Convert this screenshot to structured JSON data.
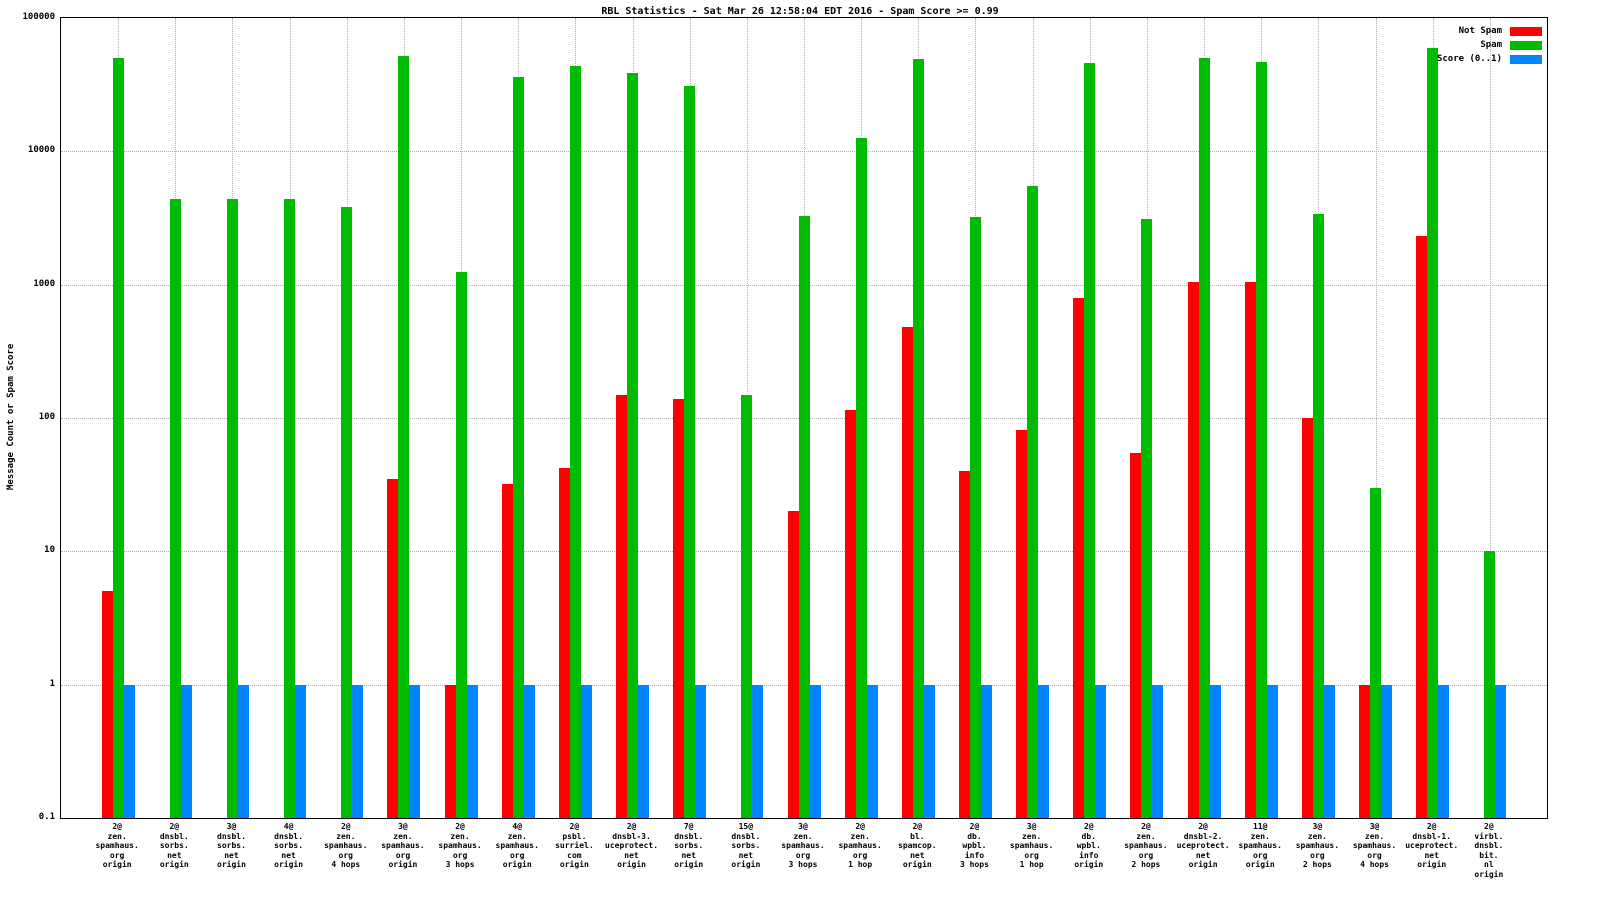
{
  "chart_data": {
    "type": "bar",
    "title": "RBL Statistics - Sat Mar 26 12:58:04 EDT 2016 - Spam Score >= 0.99",
    "ylabel": "Message Count or Spam Score",
    "y_scale": "log",
    "ylim": [
      0.1,
      100000
    ],
    "y_ticks": [
      "100000",
      "10000",
      "1000",
      "100",
      "10",
      "1",
      "0.1"
    ],
    "grid": true,
    "legend_position": "top-right",
    "legend": [
      {
        "label": "Not Spam",
        "color": "#ff0000"
      },
      {
        "label": "Spam",
        "color": "#00bb00"
      },
      {
        "label": "Score (0..1)",
        "color": "#0084ff"
      }
    ],
    "categories": [
      [
        "2@",
        "zen.",
        "spamhaus.",
        "org",
        "origin"
      ],
      [
        "2@",
        "dnsbl.",
        "sorbs.",
        "net",
        "origin"
      ],
      [
        "3@",
        "dnsbl.",
        "sorbs.",
        "net",
        "origin"
      ],
      [
        "4@",
        "dnsbl.",
        "sorbs.",
        "net",
        "origin"
      ],
      [
        "2@",
        "zen.",
        "spamhaus.",
        "org",
        "4 hops"
      ],
      [
        "3@",
        "zen.",
        "spamhaus.",
        "org",
        "origin"
      ],
      [
        "2@",
        "zen.",
        "spamhaus.",
        "org",
        "3 hops"
      ],
      [
        "4@",
        "zen.",
        "spamhaus.",
        "org",
        "origin"
      ],
      [
        "2@",
        "psbl.",
        "surriel.",
        "com",
        "origin"
      ],
      [
        "2@",
        "dnsbl-3.",
        "uceprotect.",
        "net",
        "origin"
      ],
      [
        "7@",
        "dnsbl.",
        "sorbs.",
        "net",
        "origin"
      ],
      [
        "15@",
        "dnsbl.",
        "sorbs.",
        "net",
        "origin"
      ],
      [
        "3@",
        "zen.",
        "spamhaus.",
        "org",
        "3 hops"
      ],
      [
        "2@",
        "zen.",
        "spamhaus.",
        "org",
        "1 hop"
      ],
      [
        "2@",
        "bl.",
        "spamcop.",
        "net",
        "origin"
      ],
      [
        "2@",
        "db.",
        "wpbl.",
        "info",
        "3 hops"
      ],
      [
        "3@",
        "zen.",
        "spamhaus.",
        "org",
        "1 hop"
      ],
      [
        "2@",
        "db.",
        "wpbl.",
        "info",
        "origin"
      ],
      [
        "2@",
        "zen.",
        "spamhaus.",
        "org",
        "2 hops"
      ],
      [
        "2@",
        "dnsbl-2.",
        "uceprotect.",
        "net",
        "origin"
      ],
      [
        "11@",
        "zen.",
        "spamhaus.",
        "org",
        "origin"
      ],
      [
        "3@",
        "zen.",
        "spamhaus.",
        "org",
        "2 hops"
      ],
      [
        "3@",
        "zen.",
        "spamhaus.",
        "org",
        "4 hops"
      ],
      [
        "2@",
        "dnsbl-1.",
        "uceprotect.",
        "net",
        "origin"
      ],
      [
        "2@",
        "virbl.",
        "dnsbl.",
        "bit.",
        "nl",
        "origin"
      ]
    ],
    "series": [
      {
        "name": "Not Spam",
        "color": "#ff0000",
        "values": [
          5,
          null,
          null,
          null,
          null,
          35,
          1,
          32,
          42,
          150,
          140,
          null,
          20,
          115,
          480,
          40,
          82,
          800,
          55,
          1050,
          1040,
          100,
          1,
          2300,
          null
        ]
      },
      {
        "name": "Spam",
        "color": "#00bb00",
        "values": [
          50000,
          4400,
          4400,
          4400,
          3800,
          52000,
          1250,
          36000,
          44000,
          39000,
          31000,
          150,
          3300,
          12500,
          49000,
          3200,
          5500,
          46000,
          3100,
          50000,
          47000,
          3400,
          30,
          60000,
          10
        ]
      },
      {
        "name": "Score (0..1)",
        "color": "#0084ff",
        "values": [
          1,
          1,
          1,
          1,
          1,
          1,
          1,
          1,
          1,
          1,
          1,
          1,
          1,
          1,
          1,
          1,
          1,
          1,
          1,
          1,
          1,
          1,
          1,
          1,
          1
        ]
      }
    ]
  }
}
